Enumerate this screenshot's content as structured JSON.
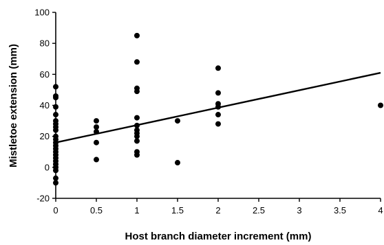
{
  "chart_data": {
    "type": "scatter",
    "title": "",
    "xlabel": "Host branch diameter increment (mm)",
    "ylabel": "Mistletoe extension (mm)",
    "xlim": [
      0,
      4
    ],
    "ylim": [
      -20,
      100
    ],
    "x_ticks": [
      0,
      0.5,
      1,
      1.5,
      2,
      2.5,
      3,
      3.5,
      4
    ],
    "x_tick_labels": [
      "0",
      "0.5",
      "1",
      "1.5",
      "2",
      "2.5",
      "3",
      "3.5",
      "4"
    ],
    "y_ticks": [
      -20,
      0,
      20,
      40,
      60,
      80,
      100
    ],
    "y_tick_labels": [
      "-20",
      "0",
      "20",
      "40",
      "60",
      "80",
      "100"
    ],
    "grid": false,
    "legend": "none",
    "points": [
      {
        "x": 0,
        "y": 52
      },
      {
        "x": 0,
        "y": 46
      },
      {
        "x": 0,
        "y": 45
      },
      {
        "x": 0,
        "y": 39
      },
      {
        "x": 0,
        "y": 34
      },
      {
        "x": 0,
        "y": 30
      },
      {
        "x": 0,
        "y": 28
      },
      {
        "x": 0,
        "y": 26
      },
      {
        "x": 0,
        "y": 24
      },
      {
        "x": 0,
        "y": 20
      },
      {
        "x": 0,
        "y": 18
      },
      {
        "x": 0,
        "y": 16
      },
      {
        "x": 0,
        "y": 14
      },
      {
        "x": 0,
        "y": 12
      },
      {
        "x": 0,
        "y": 10
      },
      {
        "x": 0,
        "y": 8
      },
      {
        "x": 0,
        "y": 6
      },
      {
        "x": 0,
        "y": 4
      },
      {
        "x": 0,
        "y": 2
      },
      {
        "x": 0,
        "y": 0
      },
      {
        "x": 0,
        "y": -2
      },
      {
        "x": 0,
        "y": -7
      },
      {
        "x": 0,
        "y": -10
      },
      {
        "x": 0.5,
        "y": 30
      },
      {
        "x": 0.5,
        "y": 26
      },
      {
        "x": 0.5,
        "y": 23
      },
      {
        "x": 0.5,
        "y": 16
      },
      {
        "x": 0.5,
        "y": 5
      },
      {
        "x": 1,
        "y": 85
      },
      {
        "x": 1,
        "y": 68
      },
      {
        "x": 1,
        "y": 51
      },
      {
        "x": 1,
        "y": 49
      },
      {
        "x": 1,
        "y": 32
      },
      {
        "x": 1,
        "y": 27
      },
      {
        "x": 1,
        "y": 24
      },
      {
        "x": 1,
        "y": 22
      },
      {
        "x": 1,
        "y": 20
      },
      {
        "x": 1,
        "y": 17
      },
      {
        "x": 1,
        "y": 10
      },
      {
        "x": 1,
        "y": 8
      },
      {
        "x": 1.5,
        "y": 30
      },
      {
        "x": 1.5,
        "y": 3
      },
      {
        "x": 2,
        "y": 64
      },
      {
        "x": 2,
        "y": 48
      },
      {
        "x": 2,
        "y": 41
      },
      {
        "x": 2,
        "y": 39
      },
      {
        "x": 2,
        "y": 34
      },
      {
        "x": 2,
        "y": 28
      },
      {
        "x": 4,
        "y": 40
      }
    ],
    "trendline": {
      "x": [
        0,
        4
      ],
      "y": [
        16,
        61
      ]
    }
  }
}
